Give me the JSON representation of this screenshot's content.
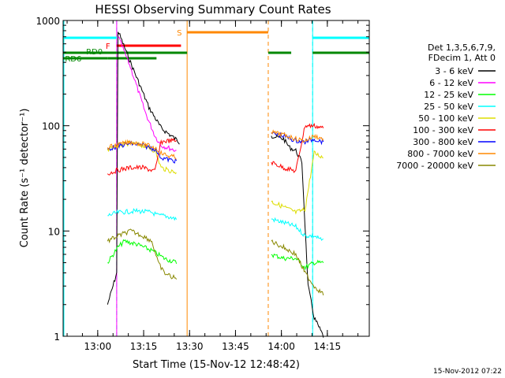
{
  "chart_data": {
    "type": "line",
    "title": "HESSI Observing Summary Count Rates",
    "xlabel": "Start Time (15-Nov-12 12:48:42)",
    "ylabel": "Count Rate (s⁻¹ detector⁻¹)",
    "yscale": "log",
    "ylim": [
      1,
      1000
    ],
    "xlim_minutes": [
      0,
      100
    ],
    "x_tick_labels": [
      "13:00",
      "13:15",
      "13:30",
      "13:45",
      "14:00",
      "14:15"
    ],
    "x_tick_minutes": [
      11.3,
      26.3,
      41.3,
      56.3,
      71.3,
      86.3
    ],
    "y_tick_labels": [
      "1",
      "10",
      "100",
      "1000"
    ],
    "y_tick_values": [
      1,
      10,
      100,
      1000
    ],
    "footer": "15-Nov-2012 07:22",
    "legend_header": [
      "Det 1,3,5,6,7,9,",
      "FDecim 1, Att 0"
    ],
    "legend": "right",
    "flag_labels": {
      "saa": "S",
      "flare": "F",
      "rd0": "RD0",
      "rd6": "RD6"
    },
    "series": [
      {
        "name": "3 - 6 keV",
        "color": "#000000",
        "points": [
          [
            14.5,
            2
          ],
          [
            16.3,
            3
          ],
          [
            17.5,
            4
          ],
          [
            17.9,
            800
          ],
          [
            22,
            400
          ],
          [
            28,
            150
          ],
          [
            32,
            95
          ],
          [
            38,
            70
          ],
          [
            68,
            80
          ],
          [
            72,
            75
          ],
          [
            74,
            62
          ],
          [
            76,
            58
          ],
          [
            78,
            45
          ],
          [
            80,
            3
          ],
          [
            82,
            1.5
          ],
          [
            85,
            1
          ]
        ]
      },
      {
        "name": "6 - 12 keV",
        "color": "#ff00ff",
        "points": [
          [
            18,
            700
          ],
          [
            22,
            360
          ],
          [
            27,
            130
          ],
          [
            30,
            80
          ],
          [
            32,
            65
          ],
          [
            37,
            58
          ]
        ]
      },
      {
        "name": "12 - 25 keV",
        "color": "#00ff00",
        "points": [
          [
            14.5,
            5
          ],
          [
            17.9,
            7
          ],
          [
            20,
            8
          ],
          [
            24,
            7.5
          ],
          [
            29,
            6.5
          ],
          [
            31,
            6
          ],
          [
            33,
            5.5
          ],
          [
            37,
            5
          ],
          [
            68,
            6
          ],
          [
            72,
            5.5
          ],
          [
            76,
            5.5
          ],
          [
            79,
            4.5
          ],
          [
            82,
            5
          ],
          [
            85,
            5
          ]
        ]
      },
      {
        "name": "25 - 50 keV",
        "color": "#00ffff",
        "points": [
          [
            14.5,
            14
          ],
          [
            18,
            15
          ],
          [
            24,
            15.5
          ],
          [
            29,
            15
          ],
          [
            31,
            14
          ],
          [
            33,
            14
          ],
          [
            37,
            13
          ],
          [
            68,
            13
          ],
          [
            72,
            12
          ],
          [
            76,
            11
          ],
          [
            79,
            9
          ],
          [
            82,
            9
          ],
          [
            85,
            8
          ]
        ]
      },
      {
        "name": "50 - 100 keV",
        "color": "#dddd00",
        "points": [
          [
            14.5,
            60
          ],
          [
            18,
            65
          ],
          [
            22,
            68
          ],
          [
            26,
            65
          ],
          [
            30,
            58
          ],
          [
            32,
            40
          ],
          [
            34,
            38
          ],
          [
            37,
            36
          ],
          [
            68,
            19
          ],
          [
            72,
            17
          ],
          [
            76,
            15
          ],
          [
            79,
            16
          ],
          [
            82,
            55
          ],
          [
            85,
            50
          ]
        ]
      },
      {
        "name": "100 - 300 keV",
        "color": "#ff0000",
        "points": [
          [
            14.5,
            35
          ],
          [
            18,
            38
          ],
          [
            22,
            40
          ],
          [
            26,
            40
          ],
          [
            30,
            37
          ],
          [
            32,
            70
          ],
          [
            34,
            72
          ],
          [
            37,
            72
          ],
          [
            68,
            45
          ],
          [
            72,
            40
          ],
          [
            76,
            37
          ],
          [
            79,
            100
          ],
          [
            82,
            100
          ],
          [
            85,
            95
          ]
        ]
      },
      {
        "name": "300 - 800 keV",
        "color": "#0000ff",
        "points": [
          [
            14.5,
            60
          ],
          [
            18,
            64
          ],
          [
            22,
            68
          ],
          [
            26,
            65
          ],
          [
            30,
            60
          ],
          [
            32,
            50
          ],
          [
            34,
            48
          ],
          [
            37,
            46
          ],
          [
            68,
            85
          ],
          [
            72,
            80
          ],
          [
            76,
            72
          ],
          [
            79,
            70
          ],
          [
            82,
            75
          ],
          [
            85,
            70
          ]
        ]
      },
      {
        "name": "800 - 7000 keV",
        "color": "#ff8800",
        "points": [
          [
            14.5,
            62
          ],
          [
            18,
            66
          ],
          [
            22,
            70
          ],
          [
            26,
            67
          ],
          [
            30,
            62
          ],
          [
            32,
            55
          ],
          [
            34,
            52
          ],
          [
            37,
            50
          ],
          [
            68,
            87
          ],
          [
            72,
            82
          ],
          [
            76,
            75
          ],
          [
            79,
            72
          ],
          [
            82,
            80
          ],
          [
            85,
            75
          ]
        ]
      },
      {
        "name": "7000 - 20000 keV",
        "color": "#888800",
        "points": [
          [
            14.5,
            8
          ],
          [
            18,
            9
          ],
          [
            22,
            10
          ],
          [
            26,
            9
          ],
          [
            29,
            8
          ],
          [
            31,
            5
          ],
          [
            33,
            4
          ],
          [
            37,
            3.5
          ],
          [
            68,
            8
          ],
          [
            72,
            7
          ],
          [
            76,
            6
          ],
          [
            79,
            4
          ],
          [
            82,
            3
          ],
          [
            85,
            2.5
          ]
        ]
      }
    ],
    "night_intervals_minutes": [
      [
        0,
        17.5
      ],
      [
        81.5,
        100
      ]
    ],
    "saa_interval_minutes": [
      40.5,
      67
    ],
    "flare_interval_minutes": [
      17.5,
      38.5
    ],
    "rd0_intervals_minutes": [
      [
        0,
        17.5
      ],
      [
        17.5,
        40.5
      ],
      [
        67,
        74.5
      ],
      [
        81.5,
        100
      ]
    ],
    "rd6_intervals_minutes": [
      [
        0,
        14.5
      ],
      [
        14.5,
        30.5
      ]
    ]
  }
}
